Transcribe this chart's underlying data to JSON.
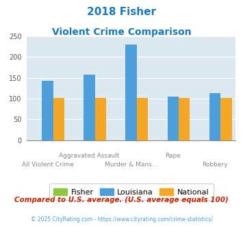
{
  "title_line1": "2018 Fisher",
  "title_line2": "Violent Crime Comparison",
  "groups": [
    {
      "label": "All Violent Crime",
      "fisher": 0,
      "louisiana": 142,
      "national": 101
    },
    {
      "label": "Aggravated Assault",
      "fisher": 0,
      "louisiana": 157,
      "national": 101
    },
    {
      "label": "Murder & Mans...",
      "fisher": 0,
      "louisiana": 230,
      "national": 101
    },
    {
      "label": "Rape",
      "fisher": 0,
      "louisiana": 105,
      "national": 101
    },
    {
      "label": "Robbery",
      "fisher": 0,
      "louisiana": 113,
      "national": 101
    }
  ],
  "x_labels_row1": [
    "",
    "Aggravated Assault",
    "",
    "Rape",
    ""
  ],
  "x_labels_row2": [
    "All Violent Crime",
    "Murder & Mans...",
    "",
    "Robbery",
    ""
  ],
  "color_fisher": "#8dc63f",
  "color_louisiana": "#4d9fdb",
  "color_national": "#f5a623",
  "bg_color": "#dce9f0",
  "title_color": "#1a7abf",
  "legend_labels": [
    "Fisher",
    "Louisiana",
    "National"
  ],
  "footer_text": "Compared to U.S. average. (U.S. average equals 100)",
  "copyright_text": "© 2025 CityRating.com - https://www.cityrating.com/crime-statistics/",
  "ylim": [
    0,
    250
  ],
  "yticks": [
    0,
    50,
    100,
    150,
    200,
    250
  ]
}
